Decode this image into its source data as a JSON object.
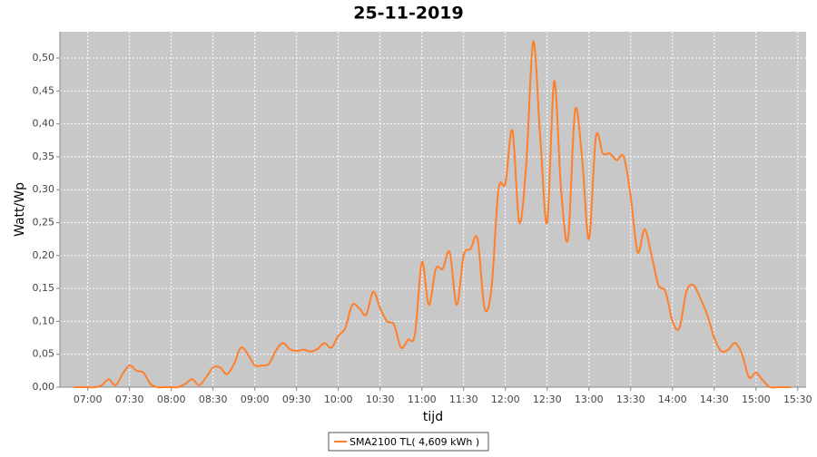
{
  "chart_data": {
    "type": "line",
    "title": "25-11-2019",
    "x_label": "tijd",
    "y_label": "Watt/Wp",
    "x": [
      "06:50",
      "06:55",
      "07:00",
      "07:05",
      "07:10",
      "07:15",
      "07:20",
      "07:25",
      "07:30",
      "07:35",
      "07:40",
      "07:45",
      "07:50",
      "07:55",
      "08:00",
      "08:05",
      "08:10",
      "08:15",
      "08:20",
      "08:25",
      "08:30",
      "08:35",
      "08:40",
      "08:45",
      "08:50",
      "08:55",
      "09:00",
      "09:05",
      "09:10",
      "09:15",
      "09:20",
      "09:25",
      "09:30",
      "09:35",
      "09:40",
      "09:45",
      "09:50",
      "09:55",
      "10:00",
      "10:05",
      "10:10",
      "10:15",
      "10:20",
      "10:25",
      "10:30",
      "10:35",
      "10:40",
      "10:45",
      "10:50",
      "10:55",
      "11:00",
      "11:05",
      "11:10",
      "11:15",
      "11:20",
      "11:25",
      "11:30",
      "11:35",
      "11:40",
      "11:45",
      "11:50",
      "11:55",
      "12:00",
      "12:05",
      "12:10",
      "12:15",
      "12:20",
      "12:25",
      "12:30",
      "12:35",
      "12:40",
      "12:45",
      "12:50",
      "12:55",
      "13:00",
      "13:05",
      "13:10",
      "13:15",
      "13:20",
      "13:25",
      "13:30",
      "13:35",
      "13:40",
      "13:45",
      "13:50",
      "13:55",
      "14:00",
      "14:05",
      "14:10",
      "14:15",
      "14:20",
      "14:25",
      "14:30",
      "14:35",
      "14:40",
      "14:45",
      "14:50",
      "14:55",
      "15:00",
      "15:05",
      "15:10",
      "15:15",
      "15:20",
      "15:25"
    ],
    "series": [
      {
        "name": "SMA2100 TL( 4,609 kWh )",
        "color": "#ff7f2a",
        "values": [
          0,
          0,
          0,
          0,
          0.003,
          0.012,
          0.003,
          0.02,
          0.033,
          0.025,
          0.022,
          0.005,
          0,
          0,
          0,
          0,
          0.005,
          0.012,
          0.003,
          0.015,
          0.03,
          0.03,
          0.02,
          0.035,
          0.06,
          0.05,
          0.033,
          0.033,
          0.035,
          0.055,
          0.067,
          0.058,
          0.055,
          0.057,
          0.054,
          0.058,
          0.067,
          0.06,
          0.078,
          0.09,
          0.125,
          0.12,
          0.11,
          0.145,
          0.12,
          0.1,
          0.095,
          0.06,
          0.072,
          0.08,
          0.19,
          0.125,
          0.18,
          0.18,
          0.205,
          0.125,
          0.2,
          0.21,
          0.225,
          0.12,
          0.15,
          0.3,
          0.31,
          0.39,
          0.25,
          0.34,
          0.525,
          0.38,
          0.25,
          0.465,
          0.3,
          0.225,
          0.42,
          0.35,
          0.225,
          0.38,
          0.355,
          0.355,
          0.345,
          0.35,
          0.29,
          0.205,
          0.24,
          0.2,
          0.155,
          0.145,
          0.1,
          0.09,
          0.145,
          0.155,
          0.135,
          0.11,
          0.075,
          0.055,
          0.057,
          0.067,
          0.05,
          0.015,
          0.022,
          0.01,
          0,
          0,
          0,
          0
        ]
      }
    ],
    "xlim": [
      "06:40",
      "15:36"
    ],
    "xticks": [
      "07:00",
      "07:30",
      "08:00",
      "08:30",
      "09:00",
      "09:30",
      "10:00",
      "10:30",
      "11:00",
      "11:30",
      "12:00",
      "12:30",
      "13:00",
      "13:30",
      "14:00",
      "14:30",
      "15:00",
      "15:30"
    ],
    "ylim": [
      0,
      0.54
    ],
    "yticks": [
      {
        "value": 0,
        "label": "0,00"
      },
      {
        "value": 0.05,
        "label": "0,05"
      },
      {
        "value": 0.1,
        "label": "0,10"
      },
      {
        "value": 0.15,
        "label": "0,15"
      },
      {
        "value": 0.2,
        "label": "0,20"
      },
      {
        "value": 0.25,
        "label": "0,25"
      },
      {
        "value": 0.3,
        "label": "0,30"
      },
      {
        "value": 0.35,
        "label": "0,35"
      },
      {
        "value": 0.4,
        "label": "0,40"
      },
      {
        "value": 0.45,
        "label": "0,45"
      },
      {
        "value": 0.5,
        "label": "0,50"
      }
    ],
    "grid": true,
    "legend": "bottom"
  }
}
